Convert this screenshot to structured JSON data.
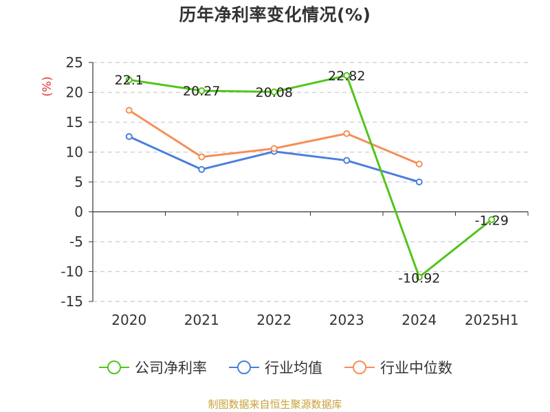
{
  "chart_data": {
    "type": "line",
    "title": "历年净利率变化情况(%)",
    "ylabel": "(%)",
    "xlabel": "",
    "categories": [
      "2020",
      "2021",
      "2022",
      "2023",
      "2024",
      "2025H1"
    ],
    "ylim": [
      -15,
      25
    ],
    "yticks": [
      25,
      20,
      15,
      10,
      5,
      0,
      -5,
      -10,
      -15
    ],
    "grid": true,
    "legend_position": "bottom",
    "series": [
      {
        "name": "公司净利率",
        "color": "#52c41a",
        "values": [
          22.1,
          20.27,
          20.08,
          22.82,
          -10.92,
          -1.29
        ],
        "labels": [
          "22.1",
          "20.27",
          "20.08",
          "22.82",
          "-10.92",
          "-1.29"
        ]
      },
      {
        "name": "行业均值",
        "color": "#4a7fdc",
        "values": [
          12.6,
          7.1,
          10.1,
          8.6,
          5.0,
          null
        ]
      },
      {
        "name": "行业中位数",
        "color": "#f78e56",
        "values": [
          17.0,
          9.2,
          10.6,
          13.1,
          8.0,
          null
        ]
      }
    ]
  },
  "source": "制图数据来自恒生聚源数据库"
}
